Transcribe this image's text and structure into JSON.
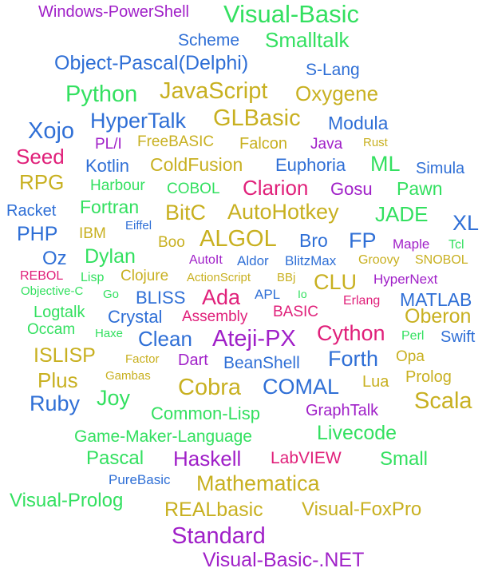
{
  "colors": {
    "purple": "#a020c8",
    "green": "#33e060",
    "blue": "#2f6fd6",
    "gold": "#c8b020",
    "pink": "#e0207a"
  },
  "words": [
    {
      "text": "Windows-PowerShell",
      "color": "purple"
    },
    {
      "text": "Visual-Basic",
      "color": "green"
    },
    {
      "text": "Scheme",
      "color": "blue"
    },
    {
      "text": "Smalltalk",
      "color": "green"
    },
    {
      "text": "Object-Pascal(Delphi)",
      "color": "blue"
    },
    {
      "text": "S-Lang",
      "color": "blue"
    },
    {
      "text": "Python",
      "color": "green"
    },
    {
      "text": "JavaScript",
      "color": "gold"
    },
    {
      "text": "Oxygene",
      "color": "gold"
    },
    {
      "text": "HyperTalk",
      "color": "blue"
    },
    {
      "text": "GLBasic",
      "color": "gold"
    },
    {
      "text": "Modula",
      "color": "blue"
    },
    {
      "text": "Xojo",
      "color": "blue"
    },
    {
      "text": "PL/I",
      "color": "purple"
    },
    {
      "text": "FreeBASIC",
      "color": "gold"
    },
    {
      "text": "Falcon",
      "color": "gold"
    },
    {
      "text": "Java",
      "color": "purple"
    },
    {
      "text": "Rust",
      "color": "gold"
    },
    {
      "text": "Seed",
      "color": "pink"
    },
    {
      "text": "Kotlin",
      "color": "blue"
    },
    {
      "text": "ColdFusion",
      "color": "gold"
    },
    {
      "text": "Euphoria",
      "color": "blue"
    },
    {
      "text": "ML",
      "color": "green"
    },
    {
      "text": "Simula",
      "color": "blue"
    },
    {
      "text": "RPG",
      "color": "gold"
    },
    {
      "text": "Harbour",
      "color": "green"
    },
    {
      "text": "COBOL",
      "color": "green"
    },
    {
      "text": "Clarion",
      "color": "pink"
    },
    {
      "text": "Gosu",
      "color": "purple"
    },
    {
      "text": "Pawn",
      "color": "green"
    },
    {
      "text": "Racket",
      "color": "blue"
    },
    {
      "text": "Fortran",
      "color": "green"
    },
    {
      "text": "BitC",
      "color": "gold"
    },
    {
      "text": "AutoHotkey",
      "color": "gold"
    },
    {
      "text": "JADE",
      "color": "green"
    },
    {
      "text": "XL",
      "color": "blue"
    },
    {
      "text": "PHP",
      "color": "blue"
    },
    {
      "text": "IBM",
      "color": "gold"
    },
    {
      "text": "Eiffel",
      "color": "blue"
    },
    {
      "text": "Boo",
      "color": "gold"
    },
    {
      "text": "ALGOL",
      "color": "gold"
    },
    {
      "text": "Bro",
      "color": "blue"
    },
    {
      "text": "FP",
      "color": "blue"
    },
    {
      "text": "Maple",
      "color": "purple"
    },
    {
      "text": "Tcl",
      "color": "green"
    },
    {
      "text": "Oz",
      "color": "blue"
    },
    {
      "text": "Dylan",
      "color": "green"
    },
    {
      "text": "AutoIt",
      "color": "purple"
    },
    {
      "text": "Aldor",
      "color": "blue"
    },
    {
      "text": "BlitzMax",
      "color": "blue"
    },
    {
      "text": "Groovy",
      "color": "gold"
    },
    {
      "text": "SNOBOL",
      "color": "gold"
    },
    {
      "text": "REBOL",
      "color": "pink"
    },
    {
      "text": "Lisp",
      "color": "green"
    },
    {
      "text": "Clojure",
      "color": "gold"
    },
    {
      "text": "ActionScript",
      "color": "gold"
    },
    {
      "text": "BBj",
      "color": "gold"
    },
    {
      "text": "CLU",
      "color": "gold"
    },
    {
      "text": "HyperNext",
      "color": "purple"
    },
    {
      "text": "Objective-C",
      "color": "green"
    },
    {
      "text": "Go",
      "color": "green"
    },
    {
      "text": "BLISS",
      "color": "blue"
    },
    {
      "text": "Ada",
      "color": "pink"
    },
    {
      "text": "APL",
      "color": "blue"
    },
    {
      "text": "Io",
      "color": "green"
    },
    {
      "text": "Erlang",
      "color": "pink"
    },
    {
      "text": "MATLAB",
      "color": "blue"
    },
    {
      "text": "Logtalk",
      "color": "green"
    },
    {
      "text": "Crystal",
      "color": "blue"
    },
    {
      "text": "Assembly",
      "color": "pink"
    },
    {
      "text": "BASIC",
      "color": "pink"
    },
    {
      "text": "Oberon",
      "color": "gold"
    },
    {
      "text": "Occam",
      "color": "green"
    },
    {
      "text": "Haxe",
      "color": "green"
    },
    {
      "text": "Clean",
      "color": "blue"
    },
    {
      "text": "Ateji-PX",
      "color": "purple"
    },
    {
      "text": "Cython",
      "color": "pink"
    },
    {
      "text": "Perl",
      "color": "green"
    },
    {
      "text": "Swift",
      "color": "blue"
    },
    {
      "text": "ISLISP",
      "color": "gold"
    },
    {
      "text": "Factor",
      "color": "gold"
    },
    {
      "text": "Dart",
      "color": "purple"
    },
    {
      "text": "BeanShell",
      "color": "blue"
    },
    {
      "text": "Forth",
      "color": "blue"
    },
    {
      "text": "Opa",
      "color": "gold"
    },
    {
      "text": "Plus",
      "color": "gold"
    },
    {
      "text": "Gambas",
      "color": "gold"
    },
    {
      "text": "Lua",
      "color": "gold"
    },
    {
      "text": "Prolog",
      "color": "gold"
    },
    {
      "text": "Ruby",
      "color": "blue"
    },
    {
      "text": "Joy",
      "color": "green"
    },
    {
      "text": "Cobra",
      "color": "gold"
    },
    {
      "text": "COMAL",
      "color": "blue"
    },
    {
      "text": "Scala",
      "color": "gold"
    },
    {
      "text": "Common-Lisp",
      "color": "green"
    },
    {
      "text": "GraphTalk",
      "color": "purple"
    },
    {
      "text": "Game-Maker-Language",
      "color": "green"
    },
    {
      "text": "Livecode",
      "color": "green"
    },
    {
      "text": "Pascal",
      "color": "green"
    },
    {
      "text": "Haskell",
      "color": "purple"
    },
    {
      "text": "LabVIEW",
      "color": "pink"
    },
    {
      "text": "Small",
      "color": "green"
    },
    {
      "text": "PureBasic",
      "color": "blue"
    },
    {
      "text": "Mathematica",
      "color": "gold"
    },
    {
      "text": "Visual-Prolog",
      "color": "green"
    },
    {
      "text": "REALbasic",
      "color": "gold"
    },
    {
      "text": "Visual-FoxPro",
      "color": "gold"
    },
    {
      "text": "Standard",
      "color": "purple"
    },
    {
      "text": "Visual-Basic-.NET",
      "color": "purple"
    }
  ]
}
